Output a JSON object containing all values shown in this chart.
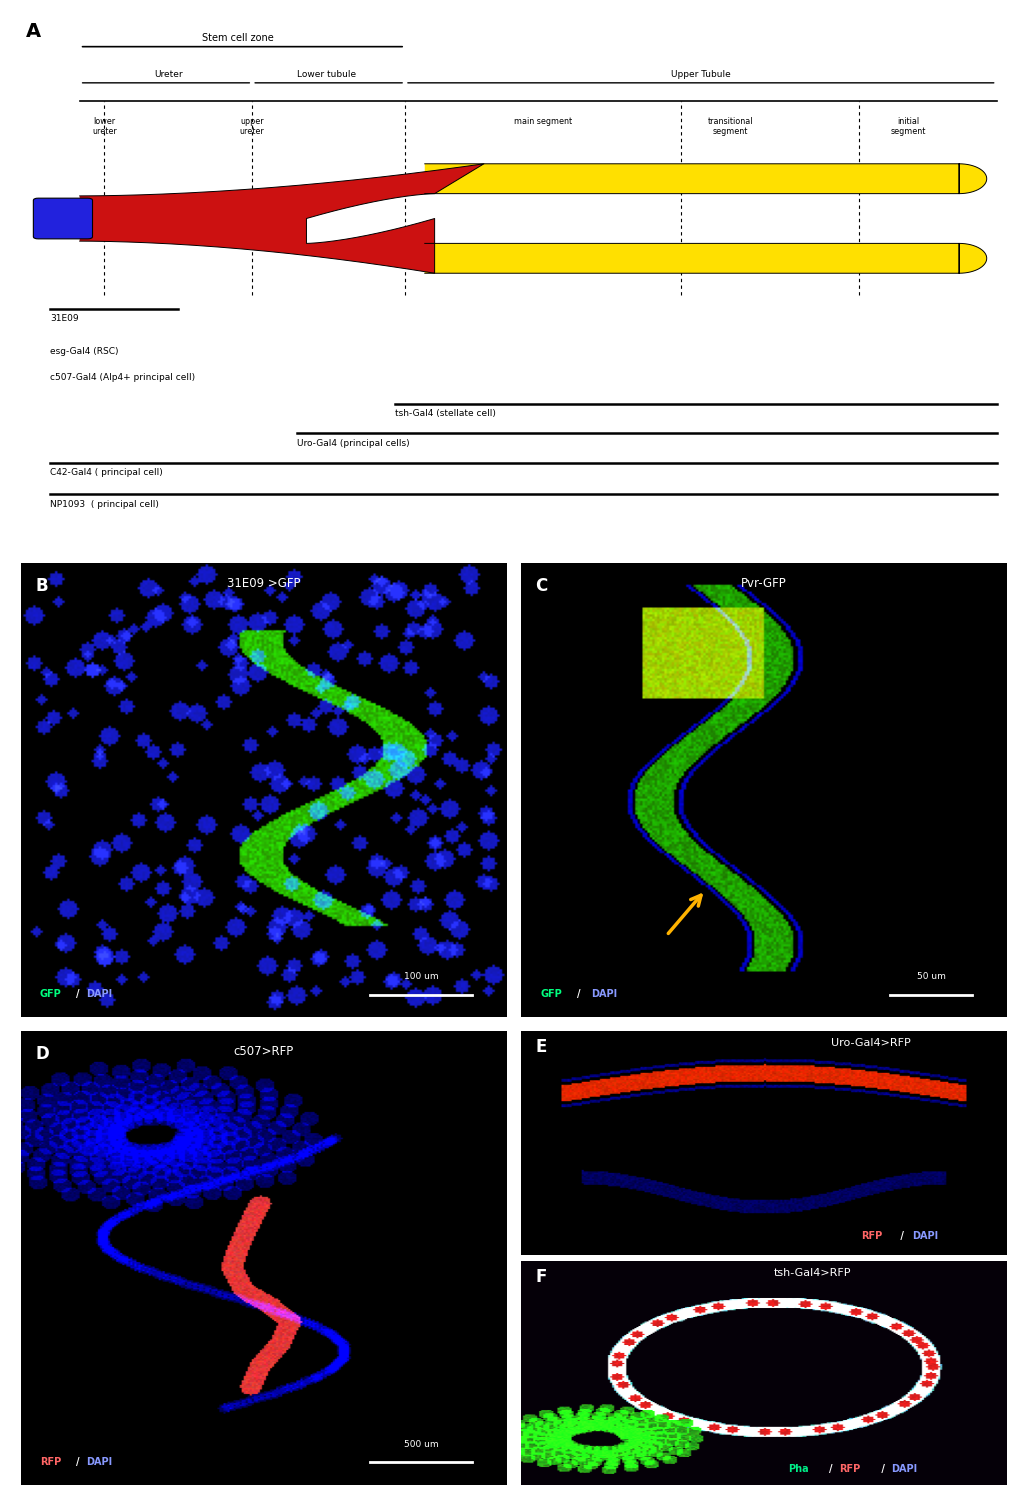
{
  "panel_A_label": "A",
  "panel_B_label": "B",
  "panel_C_label": "C",
  "panel_D_label": "D",
  "panel_E_label": "E",
  "panel_F_label": "F",
  "stem_cell_zone": "Stem cell zone",
  "ureter_label": "Ureter",
  "lower_tubule_label": "Lower tubule",
  "upper_tubule_label": "Upper Tubule",
  "label_31E09": "31E09",
  "label_esg": "esg-Gal4 (RSC)",
  "label_c507": "c507-Gal4 (Alp4+ principal cell)",
  "label_tsh": "tsh-Gal4 (stellate cell)",
  "label_uro": "Uro-Gal4 (principal cells)",
  "label_c42": "C42-Gal4 ( principal cell)",
  "label_np1093": "NP1093  ( principal cell)",
  "title_B": "31E09 >GFP",
  "title_C": "Pvr-GFP",
  "title_D": "c507>RFP",
  "title_E": "Uro-Gal4>RFP",
  "title_F": "tsh-Gal4>RFP",
  "scale_B": "100 um",
  "scale_C": "50 um",
  "scale_D": "500 um"
}
